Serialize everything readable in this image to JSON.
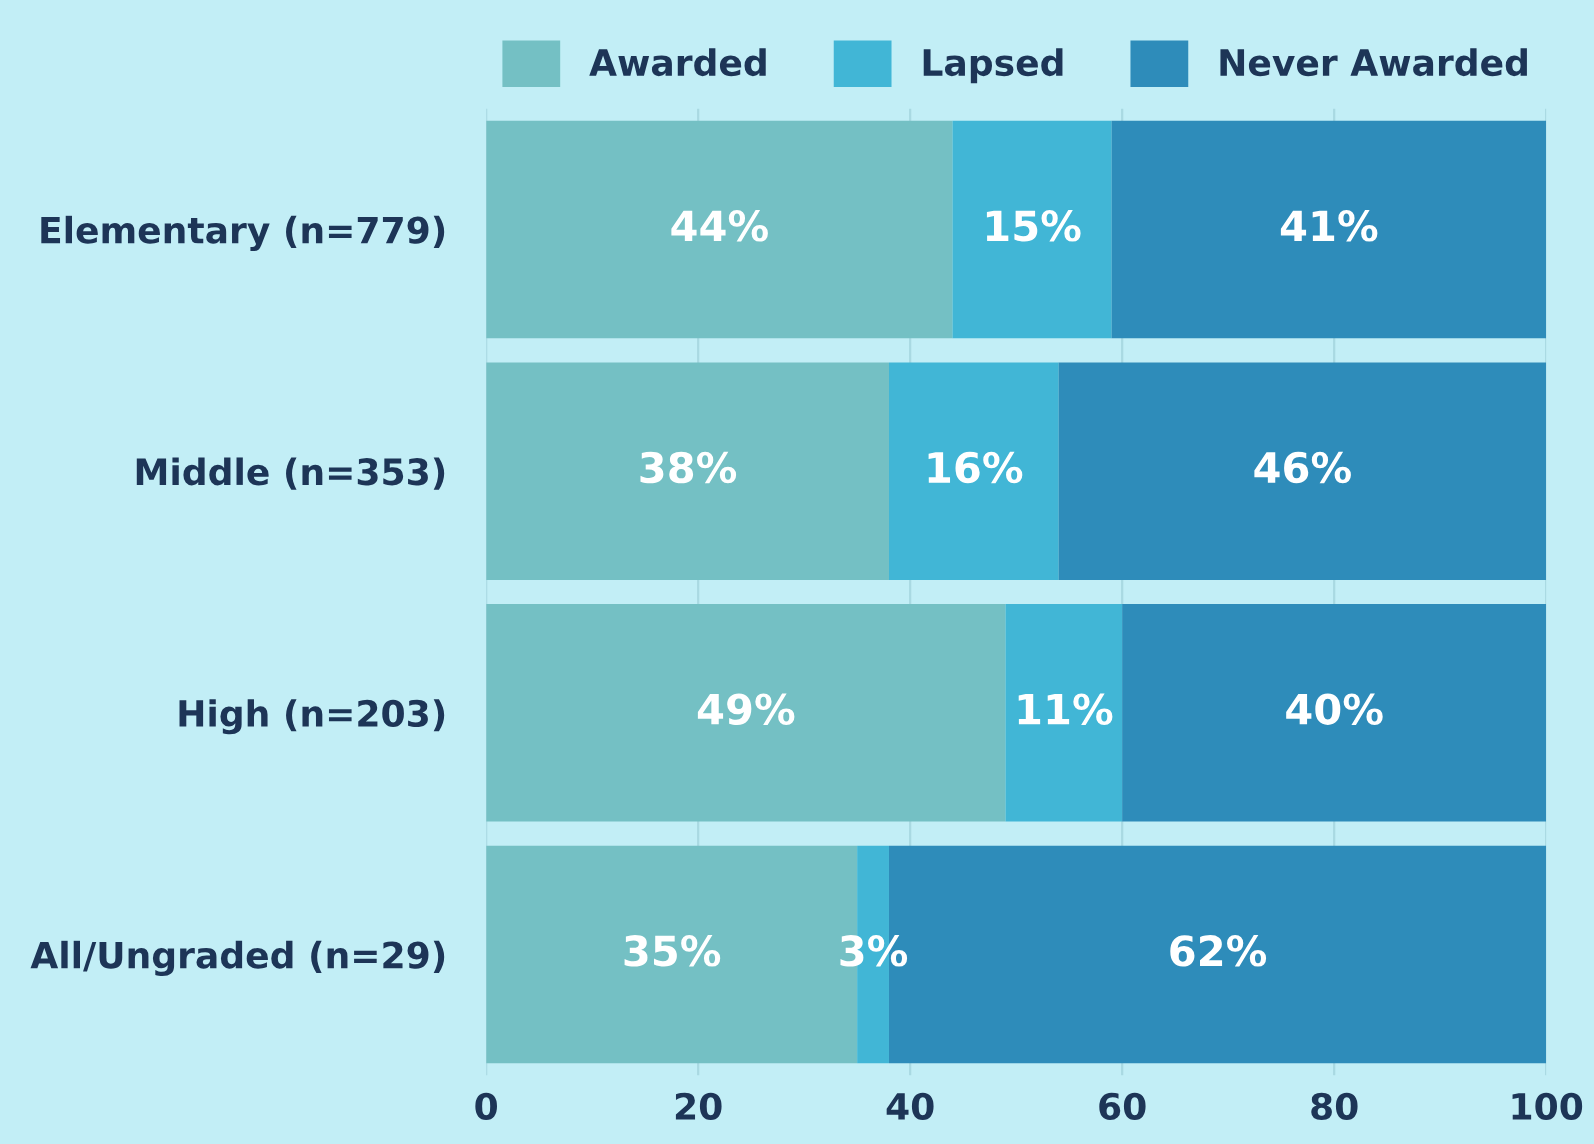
{
  "chart_data": {
    "type": "bar",
    "orientation": "horizontal",
    "stacked": true,
    "categories": [
      "Elementary (n=779)",
      "Middle (n=353)",
      "High (n=203)",
      "All/Ungraded (n=29)"
    ],
    "series": [
      {
        "name": "Awarded",
        "color": "#74c0c4",
        "values": [
          44,
          38,
          49,
          35
        ],
        "value_labels": [
          "44%",
          "38%",
          "49%",
          "35%"
        ]
      },
      {
        "name": "Lapsed",
        "color": "#41b6d6",
        "values": [
          15,
          16,
          11,
          3
        ],
        "value_labels": [
          "15%",
          "16%",
          "11%",
          "3%"
        ]
      },
      {
        "name": "Never Awarded",
        "color": "#2e8cba",
        "values": [
          41,
          46,
          40,
          62
        ],
        "value_labels": [
          "41%",
          "46%",
          "40%",
          "62%"
        ]
      }
    ],
    "xlim": [
      0,
      100
    ],
    "xticks": [
      0,
      20,
      40,
      60,
      80,
      100
    ],
    "grid": "x",
    "legend": "top"
  }
}
